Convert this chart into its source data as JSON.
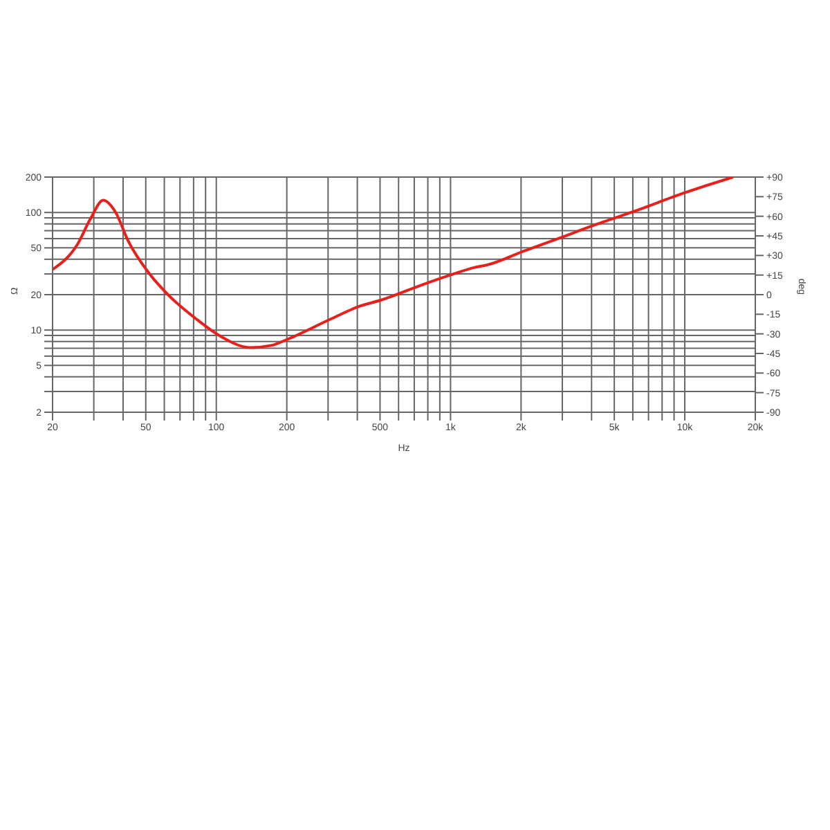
{
  "chart_data": {
    "type": "line",
    "xlabel": "Hz",
    "ylabel": "Ω",
    "y2label": "deg",
    "log": "xy",
    "grid": true,
    "marker": "none",
    "line_style": "solid",
    "x": [
      20,
      25.6,
      29,
      32.9,
      37.2,
      42.1,
      51.9,
      62.5,
      81.8,
      102.8,
      140,
      172,
      203,
      308,
      411,
      506,
      766,
      1023,
      1259,
      1426,
      2070,
      2883,
      4093,
      6069,
      9980,
      16080
    ],
    "series": [
      {
        "color": "#e8201c",
        "values": [
          32.7,
          54,
          88,
          127,
          100,
          57,
          30,
          19.8,
          12.5,
          9,
          7.1,
          7.4,
          8.4,
          12.4,
          16,
          18,
          24.5,
          29.9,
          34,
          35.7,
          47.2,
          60,
          77.8,
          102,
          147,
          200
        ]
      }
    ],
    "xlim": [
      20,
      20000
    ],
    "xticks": [
      20,
      {
        "value": 30,
        "label": null
      },
      {
        "value": 40,
        "label": null
      },
      50,
      {
        "value": 60,
        "label": null
      },
      {
        "value": 70,
        "label": null
      },
      {
        "value": 80,
        "label": null
      },
      {
        "value": 90,
        "label": null
      },
      100,
      200,
      {
        "value": 300,
        "label": null
      },
      {
        "value": 400,
        "label": null
      },
      500,
      {
        "value": 600,
        "label": null
      },
      {
        "value": 700,
        "label": null
      },
      {
        "value": 800,
        "label": null
      },
      {
        "value": 900,
        "label": null
      },
      {
        "value": 1000,
        "label": "1k"
      },
      {
        "value": 2000,
        "label": "2k"
      },
      {
        "value": 3000,
        "label": null
      },
      {
        "value": 4000,
        "label": null
      },
      {
        "value": 5000,
        "label": "5k"
      },
      {
        "value": 6000,
        "label": null
      },
      {
        "value": 7000,
        "label": null
      },
      {
        "value": 8000,
        "label": null
      },
      {
        "value": 9000,
        "label": null
      },
      {
        "value": 10000,
        "label": "10k"
      },
      {
        "value": 20000,
        "label": "20k"
      }
    ],
    "ylim": [
      2,
      200
    ],
    "yticks": [
      2,
      {
        "value": 3,
        "label": null
      },
      {
        "value": 4,
        "label": null
      },
      5,
      {
        "value": 6,
        "label": null
      },
      {
        "value": 7,
        "label": null
      },
      {
        "value": 8,
        "label": null
      },
      {
        "value": 9,
        "label": null
      },
      10,
      20,
      {
        "value": 30,
        "label": null
      },
      {
        "value": 40,
        "label": null
      },
      50,
      {
        "value": 60,
        "label": null
      },
      {
        "value": 70,
        "label": null
      },
      {
        "value": 80,
        "label": null
      },
      {
        "value": 90,
        "label": null
      },
      100,
      200
    ],
    "y2lim": [
      -90,
      90
    ],
    "y2ticks": [
      -90,
      -75,
      -60,
      -45,
      -30,
      -15,
      0,
      {
        "value": 15,
        "label": "+15"
      },
      {
        "value": 30,
        "label": "+30"
      },
      {
        "value": 45,
        "label": "+45"
      },
      {
        "value": 60,
        "label": "+60"
      },
      {
        "value": 75,
        "label": "+75"
      },
      {
        "value": 90,
        "label": "+90"
      }
    ]
  }
}
